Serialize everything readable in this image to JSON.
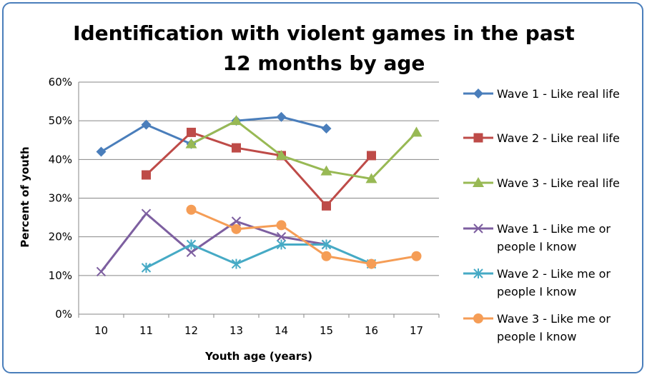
{
  "chart_data": {
    "type": "line",
    "title_lines": [
      "Identification with violent games in the past",
      "12 months by age"
    ],
    "xlabel": "Youth age (years)",
    "ylabel": "Percent of youth",
    "categories": [
      "10",
      "11",
      "12",
      "13",
      "14",
      "15",
      "16",
      "17"
    ],
    "ylim": [
      0,
      60
    ],
    "yticks": [
      "0%",
      "10%",
      "20%",
      "30%",
      "40%",
      "50%",
      "60%"
    ],
    "grid": true,
    "legend_position": "right",
    "series": [
      {
        "name": "Wave 1 - Like real life",
        "legend_lines": [
          "Wave 1 - Like real life"
        ],
        "color": "#4a7ebb",
        "marker": "diamond",
        "values": [
          42,
          49,
          44,
          50,
          51,
          48,
          null,
          null
        ]
      },
      {
        "name": "Wave 2 - Like real life",
        "legend_lines": [
          "Wave 2 - Like real life"
        ],
        "color": "#be4b48",
        "marker": "square",
        "values": [
          null,
          36,
          47,
          43,
          41,
          28,
          41,
          null
        ]
      },
      {
        "name": "Wave 3 - Like real life",
        "legend_lines": [
          "Wave 3 - Like real life"
        ],
        "color": "#98b954",
        "marker": "triangle",
        "values": [
          null,
          null,
          44,
          50,
          41,
          37,
          35,
          47
        ]
      },
      {
        "name": "Wave 1 - Like me or people I know",
        "legend_lines": [
          "Wave 1 - Like me or",
          "people I know"
        ],
        "color": "#7d5fa0",
        "marker": "x",
        "values": [
          11,
          26,
          16,
          24,
          20,
          18,
          null,
          null
        ]
      },
      {
        "name": "Wave 2 - Like me or people I know",
        "legend_lines": [
          "Wave 2 - Like me or",
          "people I know"
        ],
        "color": "#46aac5",
        "marker": "star",
        "values": [
          null,
          12,
          18,
          13,
          18,
          18,
          13,
          null
        ]
      },
      {
        "name": "Wave 3 - Like me or people I know",
        "legend_lines": [
          "Wave 3 - Like me or",
          "people I know"
        ],
        "color": "#f59d56",
        "marker": "circle",
        "values": [
          null,
          null,
          27,
          22,
          23,
          15,
          13,
          15
        ]
      }
    ]
  }
}
